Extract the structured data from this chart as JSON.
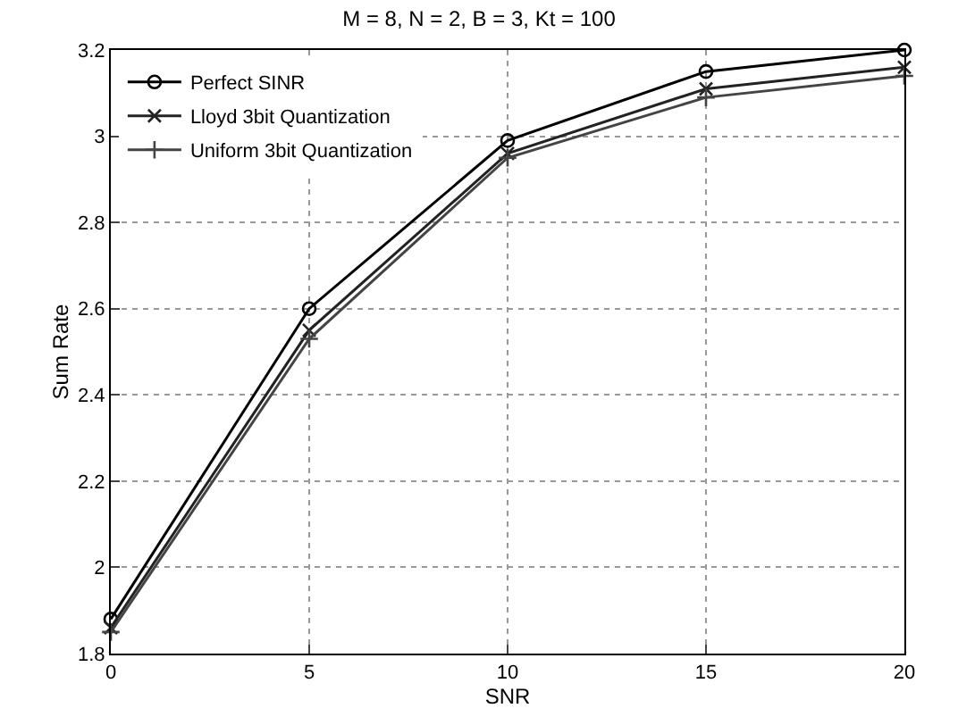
{
  "chart_data": {
    "type": "line",
    "title": "M = 8, N = 2, B = 3, Kt = 100",
    "xlabel": "SNR",
    "ylabel": "Sum Rate",
    "x": [
      0,
      5,
      10,
      15,
      20
    ],
    "series": [
      {
        "name": "Perfect SINR",
        "color": "#000000",
        "marker": "circle",
        "values": [
          1.88,
          2.6,
          2.99,
          3.15,
          3.2
        ]
      },
      {
        "name": "Lloyd 3bit Quantization",
        "color": "#222222",
        "marker": "cross",
        "values": [
          1.86,
          2.55,
          2.96,
          3.11,
          3.16
        ]
      },
      {
        "name": "Uniform 3bit Quantization",
        "color": "#444444",
        "marker": "plus",
        "values": [
          1.85,
          2.53,
          2.95,
          3.09,
          3.14
        ]
      }
    ],
    "xlim": [
      0,
      20
    ],
    "xticks": [
      0,
      5,
      10,
      15,
      20
    ],
    "ylim": [
      1.8,
      3.2
    ],
    "yticks": [
      1.8,
      2,
      2.2,
      2.4,
      2.6,
      2.8,
      3,
      3.2
    ],
    "grid": true,
    "legend": "top left",
    "line_style": "solid"
  }
}
